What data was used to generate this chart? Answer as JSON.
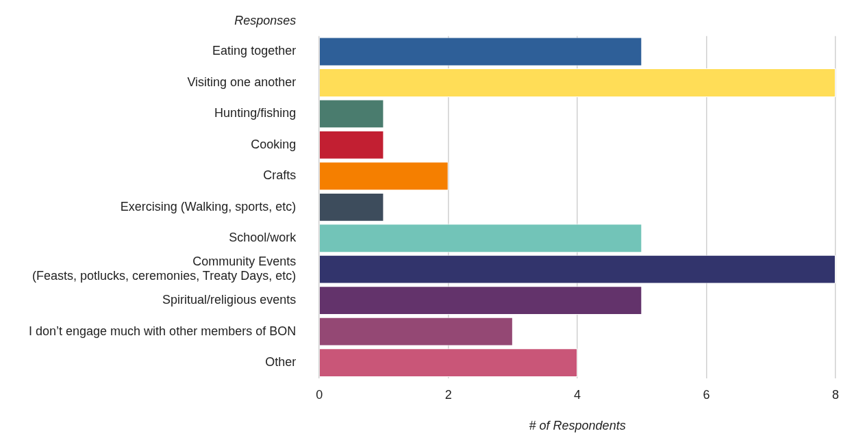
{
  "chart_data": {
    "type": "bar",
    "orientation": "horizontal",
    "ylabel": "Responses",
    "xlabel": "# of Respondents",
    "categories": [
      "Eating together",
      "Visiting one another",
      "Hunting/fishing",
      "Cooking",
      "Crafts",
      "Exercising (Walking, sports, etc)",
      "School/work",
      "Community Events\n(Feasts, potlucks, ceremonies, Treaty Days, etc)",
      "Spiritual/religious events",
      "I don’t engage much with other members of BON",
      "Other"
    ],
    "values": [
      5,
      8,
      1,
      1,
      2,
      1,
      5,
      8,
      5,
      3,
      4
    ],
    "colors": [
      "#2e5f98",
      "#ffdd57",
      "#4a7c6e",
      "#c21f32",
      "#f57f00",
      "#3d4c5c",
      "#72c4b8",
      "#32346c",
      "#63336b",
      "#944874",
      "#c95678"
    ],
    "xlim": [
      0,
      8
    ],
    "xticks": [
      0,
      2,
      4,
      6,
      8
    ],
    "grid": "x",
    "legend": false
  }
}
